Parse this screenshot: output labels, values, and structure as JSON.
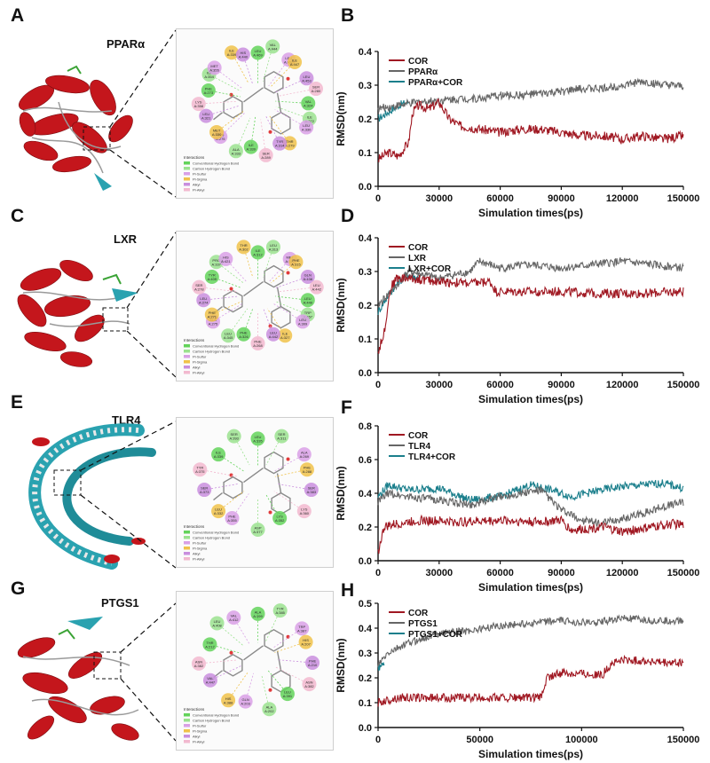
{
  "panels": [
    {
      "letter": "A",
      "protein": "PPARα",
      "residues": [
        "LEU A:469",
        "VAL A:444",
        "LEU A:456",
        "ILE A:447",
        "LEU A:453",
        "SER A:280",
        "VAL A:324",
        "ILE A:272",
        "LEU A:330",
        "THR A:279",
        "TYR A:314",
        "SER A:289",
        "ILE A:339",
        "ALA A:333",
        "CYS A:275",
        "MET A:330",
        "LEU A:321",
        "LYS A:358",
        "PHE A:273",
        "ILE A:354",
        "MET A:355",
        "ILE A:339",
        "HIS A:440"
      ]
    },
    {
      "letter": "C",
      "protein": "LXR",
      "residues": [
        "ILE A:312",
        "LEU A:313",
        "MET A:312",
        "PHE A:315",
        "GLN A:438",
        "LEU A:442",
        "LEU A:449",
        "TRP A:457",
        "LEU A:309",
        "ILE A:327",
        "LEU A:442",
        "PHE A:268",
        "PHE A:326",
        "LEU A:345",
        "ALA A:275",
        "PHE A:271",
        "LEU A:274",
        "SER A:278",
        "TYR A:405",
        "PRO A:337",
        "HIS A:421",
        "THR A:302"
      ]
    },
    {
      "letter": "E",
      "protein": "TLR4",
      "residues": [
        "LEU A:335",
        "SER A:311",
        "ALA A:269",
        "PHE A:288",
        "SER A:383",
        "LYS A:360",
        "LYS A:352",
        "ASP A:377",
        "PHE A:355",
        "LEU A:332",
        "SER A:373",
        "TYR A:375",
        "ILE A:339",
        "SER A:393"
      ]
    },
    {
      "letter": "G",
      "protein": "PTGS1",
      "residues": [
        "ALA A:199",
        "TYR A:385",
        "TRP A:387",
        "HIS A:207",
        "PHE A:210",
        "ASN A:382",
        "LEU A:391",
        "ALA A:202",
        "GLN A:203",
        "HIS A:388",
        "VAL A:447",
        "ASN A:382",
        "THR A:212",
        "LEU A:408",
        "VAL A:412"
      ]
    }
  ],
  "legend_title": "Interactions",
  "legend_items": [
    "Conventional Hydrogen Bond",
    "Carbon Hydrogen Bond",
    "Pi-Sulfur",
    "Pi-Sigma",
    "Alkyl",
    "Pi-Alkyl"
  ],
  "chart_data": [
    {
      "letter": "B",
      "type": "line",
      "xlabel": "Simulation times(ps)",
      "ylabel": "RMSD(nm)",
      "xlim": [
        0,
        150000
      ],
      "ylim": [
        0,
        0.4
      ],
      "xticks": [
        0,
        30000,
        60000,
        90000,
        120000,
        150000
      ],
      "yticks": [
        0.0,
        0.1,
        0.2,
        0.3,
        0.4
      ],
      "series": [
        {
          "name": "COR",
          "color": "#a01822",
          "x": [
            0,
            5000,
            10000,
            15000,
            17000,
            20000,
            25000,
            30000,
            35000,
            40000,
            50000,
            60000,
            70000,
            80000,
            90000,
            100000,
            110000,
            120000,
            130000,
            140000,
            150000
          ],
          "y": [
            0.08,
            0.1,
            0.09,
            0.13,
            0.22,
            0.24,
            0.23,
            0.25,
            0.2,
            0.18,
            0.17,
            0.16,
            0.17,
            0.17,
            0.16,
            0.15,
            0.15,
            0.14,
            0.15,
            0.14,
            0.15
          ]
        },
        {
          "name": "PPARα",
          "color": "#666666",
          "x": [
            0,
            10000,
            20000,
            30000,
            40000,
            50000,
            60000,
            70000,
            80000,
            90000,
            100000,
            110000,
            120000,
            130000,
            140000,
            150000
          ],
          "y": [
            0.23,
            0.24,
            0.25,
            0.255,
            0.26,
            0.26,
            0.27,
            0.27,
            0.275,
            0.28,
            0.29,
            0.29,
            0.3,
            0.31,
            0.3,
            0.295
          ]
        },
        {
          "name": "PPARα+COR",
          "color": "#1b7f8c",
          "x": [
            0,
            5000,
            10000,
            15000
          ],
          "y": [
            0.2,
            0.22,
            0.24,
            0.25
          ]
        }
      ]
    },
    {
      "letter": "D",
      "type": "line",
      "xlabel": "Simulation times(ps)",
      "ylabel": "RMSD(nm)",
      "xlim": [
        0,
        150000
      ],
      "ylim": [
        0,
        0.4
      ],
      "xticks": [
        0,
        30000,
        60000,
        90000,
        120000,
        150000
      ],
      "yticks": [
        0.0,
        0.1,
        0.2,
        0.3,
        0.4
      ],
      "series": [
        {
          "name": "COR",
          "color": "#a01822",
          "x": [
            0,
            3000,
            6000,
            9000,
            15000,
            30000,
            45000,
            55000,
            58000,
            70000,
            90000,
            110000,
            130000,
            150000
          ],
          "y": [
            0.06,
            0.12,
            0.25,
            0.28,
            0.28,
            0.27,
            0.265,
            0.27,
            0.24,
            0.24,
            0.24,
            0.235,
            0.235,
            0.24
          ]
        },
        {
          "name": "LXR",
          "color": "#666666",
          "x": [
            0,
            3000,
            8000,
            15000,
            30000,
            45000,
            50000,
            60000,
            75000,
            90000,
            105000,
            120000,
            135000,
            150000
          ],
          "y": [
            0.2,
            0.22,
            0.25,
            0.3,
            0.28,
            0.3,
            0.33,
            0.31,
            0.32,
            0.31,
            0.32,
            0.33,
            0.32,
            0.31
          ]
        },
        {
          "name": "LXR+COR",
          "color": "#1b7f8c",
          "x": [
            0,
            5000,
            10000,
            15000,
            20000
          ],
          "y": [
            0.18,
            0.23,
            0.27,
            0.29,
            0.28
          ]
        }
      ]
    },
    {
      "letter": "F",
      "type": "line",
      "xlabel": "Simulation times(ps)",
      "ylabel": "RMSD(nm)",
      "xlim": [
        0,
        150000
      ],
      "ylim": [
        0,
        0.8
      ],
      "xticks": [
        0,
        30000,
        60000,
        90000,
        120000,
        150000
      ],
      "yticks": [
        0.0,
        0.2,
        0.4,
        0.6,
        0.8
      ],
      "series": [
        {
          "name": "COR",
          "color": "#a01822",
          "x": [
            0,
            3000,
            10000,
            20000,
            40000,
            60000,
            80000,
            90000,
            95000,
            110000,
            120000,
            135000,
            145000,
            150000
          ],
          "y": [
            0.05,
            0.2,
            0.22,
            0.24,
            0.23,
            0.24,
            0.23,
            0.24,
            0.18,
            0.2,
            0.17,
            0.2,
            0.22,
            0.21
          ]
        },
        {
          "name": "TLR4",
          "color": "#666666",
          "x": [
            0,
            5000,
            15000,
            30000,
            45000,
            60000,
            70000,
            80000,
            90000,
            100000,
            110000,
            120000,
            130000,
            140000,
            150000
          ],
          "y": [
            0.35,
            0.4,
            0.38,
            0.36,
            0.33,
            0.38,
            0.4,
            0.42,
            0.3,
            0.24,
            0.22,
            0.25,
            0.28,
            0.32,
            0.35
          ]
        },
        {
          "name": "TLR4+COR",
          "color": "#1b7f8c",
          "x": [
            0,
            5000,
            15000,
            30000,
            45000,
            60000,
            75000,
            85000,
            95000,
            110000,
            120000,
            130000,
            140000,
            150000
          ],
          "y": [
            0.38,
            0.45,
            0.42,
            0.43,
            0.36,
            0.38,
            0.45,
            0.42,
            0.38,
            0.42,
            0.44,
            0.45,
            0.46,
            0.43
          ]
        }
      ]
    },
    {
      "letter": "H",
      "type": "line",
      "xlabel": "Simulation times(ps)",
      "ylabel": "RMSD(nm)",
      "xlim": [
        0,
        150000
      ],
      "ylim": [
        0,
        0.5
      ],
      "xticks": [
        0,
        50000,
        100000,
        150000
      ],
      "yticks": [
        0.0,
        0.1,
        0.2,
        0.3,
        0.4,
        0.5
      ],
      "series": [
        {
          "name": "COR",
          "color": "#a01822",
          "x": [
            0,
            10000,
            20000,
            40000,
            60000,
            80000,
            83000,
            90000,
            100000,
            110000,
            115000,
            120000,
            130000,
            140000,
            150000
          ],
          "y": [
            0.1,
            0.12,
            0.12,
            0.12,
            0.12,
            0.12,
            0.2,
            0.22,
            0.22,
            0.21,
            0.26,
            0.27,
            0.27,
            0.26,
            0.26
          ]
        },
        {
          "name": "PTGS1",
          "color": "#666666",
          "x": [
            0,
            5000,
            15000,
            30000,
            45000,
            60000,
            75000,
            90000,
            105000,
            120000,
            135000,
            150000
          ],
          "y": [
            0.25,
            0.3,
            0.34,
            0.38,
            0.39,
            0.41,
            0.42,
            0.43,
            0.42,
            0.44,
            0.43,
            0.43
          ]
        },
        {
          "name": "PTGS1+COR",
          "color": "#1b7f8c",
          "x": [
            0,
            3000
          ],
          "y": [
            0.24,
            0.26
          ]
        }
      ]
    }
  ]
}
